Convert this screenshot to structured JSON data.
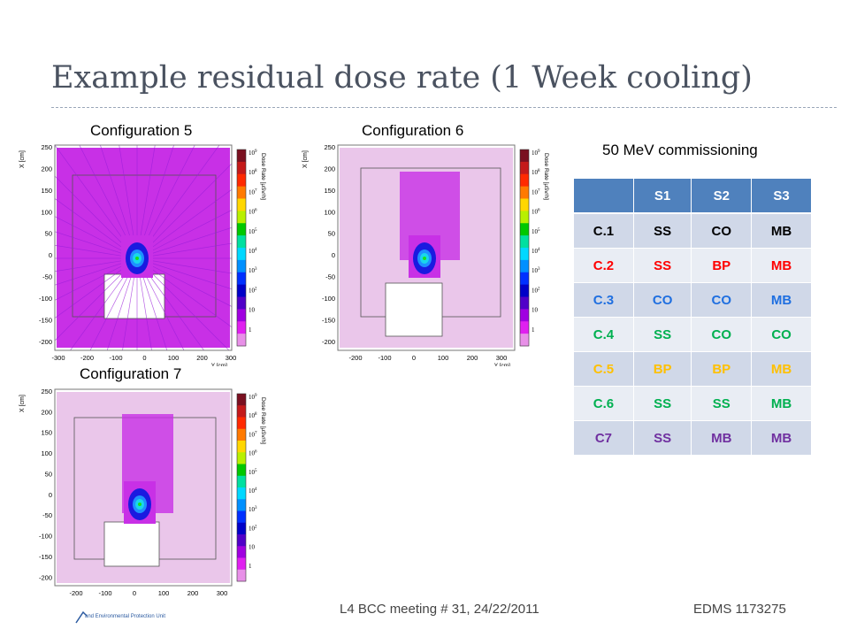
{
  "title": "Example residual dose rate (1 Week cooling)",
  "plots": [
    {
      "label": "Configuration 5",
      "x_ticks": [
        "-300",
        "-200",
        "-100",
        "0",
        "100",
        "200",
        "300"
      ],
      "x_label": "Y [cm]",
      "y_ticks": [
        "250",
        "200",
        "150",
        "100",
        "50",
        "0",
        "-50",
        "-100",
        "-150",
        "-200"
      ],
      "y_label": "X [cm]"
    },
    {
      "label": "Configuration 6",
      "x_ticks": [
        "-200",
        "-100",
        "0",
        "100",
        "200",
        "300"
      ],
      "x_label": "Y [cm]",
      "y_ticks": [
        "250",
        "200",
        "150",
        "100",
        "50",
        "0",
        "-50",
        "-100",
        "-150",
        "-200"
      ],
      "y_label": "X [cm]"
    },
    {
      "label": "Configuration 7",
      "x_ticks": [
        "-200",
        "-100",
        "0",
        "100",
        "200",
        "300"
      ],
      "x_label": "Y [cm]",
      "y_ticks": [
        "250",
        "200",
        "150",
        "100",
        "50",
        "0",
        "-50",
        "-100",
        "-150",
        "-200"
      ],
      "y_label": "X [cm]"
    }
  ],
  "colorbar": {
    "label": "Dose Rate [μSv/h]",
    "exponents": [
      "9",
      "8",
      "7",
      "6",
      "5",
      "4",
      "3",
      "2"
    ],
    "plain_ticks": [
      "10",
      "1"
    ],
    "colors": [
      "#7a1020",
      "#c41a1a",
      "#ff2a00",
      "#ff7a00",
      "#ffd700",
      "#b8f000",
      "#00c800",
      "#00e0a0",
      "#00d8ff",
      "#0090ff",
      "#0030ff",
      "#0000c8",
      "#5000c8",
      "#a000e0",
      "#e020f0",
      "#e890e8"
    ]
  },
  "plot_colors": {
    "frame": "#777777",
    "bg_light": "#eac6ea",
    "bg_mid": "#e070e0",
    "bg_strong": "#c830e6",
    "purple": "#9a1eda",
    "deep_blue": "#1a1ae0",
    "blue": "#1e90ff",
    "cyan": "#19d6ec",
    "green": "#19e01e"
  },
  "commissioning_label": "50 MeV commissioning",
  "table": {
    "headers": [
      "",
      "S1",
      "S2",
      "S3"
    ],
    "rows": [
      {
        "cells": [
          "C.1",
          "SS",
          "CO",
          "MB"
        ],
        "color": "#000000"
      },
      {
        "cells": [
          "C.2",
          "SS",
          "BP",
          "MB"
        ],
        "color": "#ff0000"
      },
      {
        "cells": [
          "C.3",
          "CO",
          "CO",
          "MB"
        ],
        "color": "#1f6fe0"
      },
      {
        "cells": [
          "C.4",
          "SS",
          "CO",
          "CO"
        ],
        "color": "#00b050"
      },
      {
        "cells": [
          "C.5",
          "BP",
          "BP",
          "MB"
        ],
        "color": "#ffc000"
      },
      {
        "cells": [
          "C.6",
          "SS",
          "SS",
          "MB"
        ],
        "color": "#00b050"
      },
      {
        "cells": [
          "C7",
          "SS",
          "MB",
          "MB"
        ],
        "color": "#7030a0"
      }
    ]
  },
  "footer": {
    "meeting": "L4 BCC meeting # 31, 24/22/2011",
    "edms": "EDMS 1173275",
    "logo_text": "and Environmental Protection Unit"
  }
}
